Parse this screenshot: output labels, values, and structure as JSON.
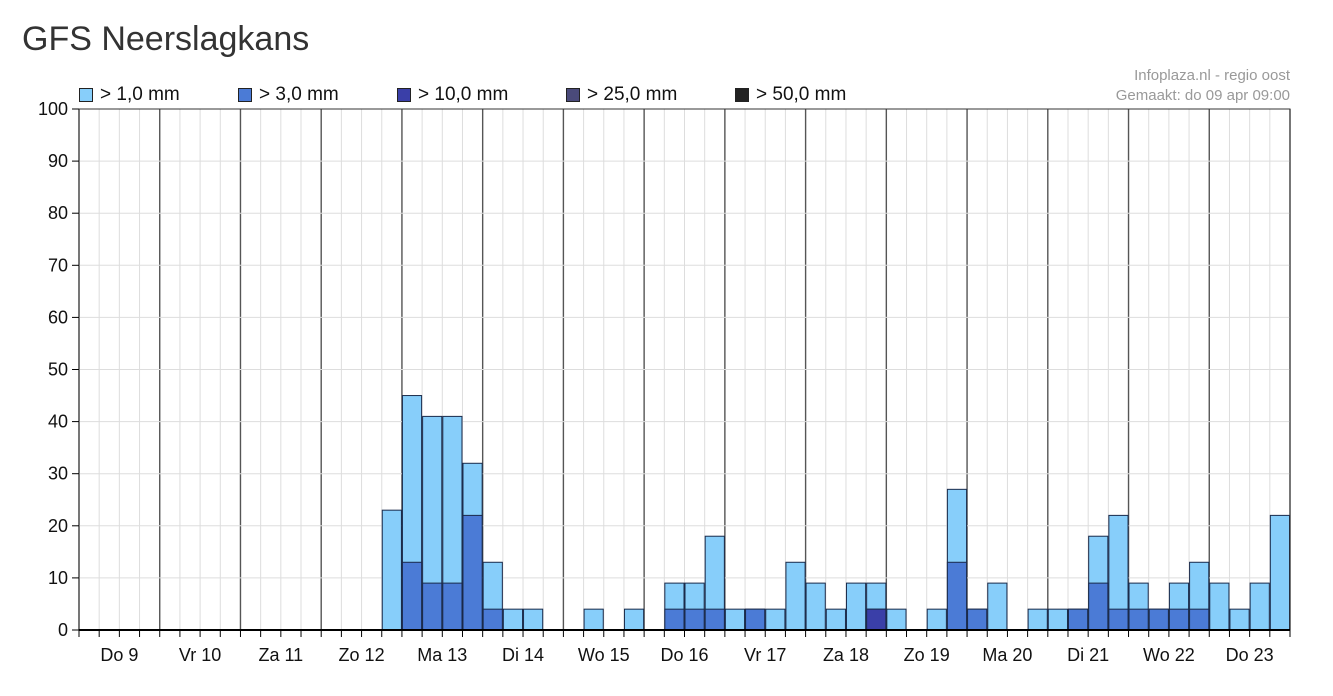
{
  "title": "GFS Neerslagkans",
  "credit": {
    "source": "Infoplaza.nl - regio oost",
    "made": "Gemaakt: do 09 apr 09:00"
  },
  "chart_data": {
    "type": "bar",
    "stacked": true,
    "grid": true,
    "legend_position": "top",
    "ylim": [
      0,
      100
    ],
    "yticks": [
      0,
      10,
      20,
      30,
      40,
      50,
      60,
      70,
      80,
      90,
      100
    ],
    "xlim": [
      0,
      60
    ],
    "day_labels": [
      "Do 9",
      "Vr 10",
      "Za 11",
      "Zo 12",
      "Ma 13",
      "Di 14",
      "Wo 15",
      "Do 16",
      "Vr 17",
      "Za 18",
      "Zo 19",
      "Ma 20",
      "Di 21",
      "Wo 22",
      "Do 23"
    ],
    "series": [
      {
        "name": "> 1,0 mm",
        "color": "#87CEFA"
      },
      {
        "name": "> 3,0 mm",
        "color": "#4B7BD6"
      },
      {
        "name": "> 10,0 mm",
        "color": "#3A3FA8"
      },
      {
        "name": "> 25,0 mm",
        "color": "#4A4A7A"
      },
      {
        "name": "> 50,0 mm",
        "color": "#222222"
      }
    ],
    "bars": [
      {
        "x": 15,
        "values": [
          23,
          0,
          0,
          0,
          0
        ]
      },
      {
        "x": 16,
        "values": [
          45,
          13,
          0,
          0,
          0
        ]
      },
      {
        "x": 17,
        "values": [
          41,
          9,
          0,
          0,
          0
        ]
      },
      {
        "x": 18,
        "values": [
          41,
          9,
          0,
          0,
          0
        ]
      },
      {
        "x": 19,
        "values": [
          32,
          22,
          0,
          0,
          0
        ]
      },
      {
        "x": 20,
        "values": [
          13,
          4,
          0,
          0,
          0
        ]
      },
      {
        "x": 21,
        "values": [
          4,
          0,
          0,
          0,
          0
        ]
      },
      {
        "x": 22,
        "values": [
          4,
          0,
          0,
          0,
          0
        ]
      },
      {
        "x": 25,
        "values": [
          4,
          0,
          0,
          0,
          0
        ]
      },
      {
        "x": 27,
        "values": [
          4,
          0,
          0,
          0,
          0
        ]
      },
      {
        "x": 29,
        "values": [
          9,
          4,
          0,
          0,
          0
        ]
      },
      {
        "x": 30,
        "values": [
          9,
          4,
          0,
          0,
          0
        ]
      },
      {
        "x": 31,
        "values": [
          18,
          4,
          0,
          0,
          0
        ]
      },
      {
        "x": 32,
        "values": [
          4,
          0,
          0,
          0,
          0
        ]
      },
      {
        "x": 33,
        "values": [
          4,
          4,
          0,
          0,
          0
        ]
      },
      {
        "x": 34,
        "values": [
          4,
          0,
          0,
          0,
          0
        ]
      },
      {
        "x": 35,
        "values": [
          13,
          0,
          0,
          0,
          0
        ]
      },
      {
        "x": 36,
        "values": [
          9,
          0,
          0,
          0,
          0
        ]
      },
      {
        "x": 37,
        "values": [
          4,
          0,
          0,
          0,
          0
        ]
      },
      {
        "x": 38,
        "values": [
          9,
          0,
          0,
          0,
          0
        ]
      },
      {
        "x": 39,
        "values": [
          9,
          4,
          4,
          0,
          0
        ]
      },
      {
        "x": 40,
        "values": [
          4,
          0,
          0,
          0,
          0
        ]
      },
      {
        "x": 42,
        "values": [
          4,
          0,
          0,
          0,
          0
        ]
      },
      {
        "x": 43,
        "values": [
          27,
          13,
          0,
          0,
          0
        ]
      },
      {
        "x": 44,
        "values": [
          4,
          4,
          0,
          0,
          0
        ]
      },
      {
        "x": 45,
        "values": [
          9,
          0,
          0,
          0,
          0
        ]
      },
      {
        "x": 47,
        "values": [
          4,
          0,
          0,
          0,
          0
        ]
      },
      {
        "x": 48,
        "values": [
          4,
          0,
          0,
          0,
          0
        ]
      },
      {
        "x": 49,
        "values": [
          4,
          4,
          0,
          0,
          0
        ]
      },
      {
        "x": 50,
        "values": [
          18,
          9,
          0,
          0,
          0
        ]
      },
      {
        "x": 51,
        "values": [
          22,
          4,
          0,
          0,
          0
        ]
      },
      {
        "x": 52,
        "values": [
          9,
          4,
          0,
          0,
          0
        ]
      },
      {
        "x": 53,
        "values": [
          4,
          4,
          0,
          0,
          0
        ]
      },
      {
        "x": 54,
        "values": [
          9,
          4,
          0,
          0,
          0
        ]
      },
      {
        "x": 55,
        "values": [
          13,
          4,
          0,
          0,
          0
        ]
      },
      {
        "x": 56,
        "values": [
          9,
          0,
          0,
          0,
          0
        ]
      },
      {
        "x": 57,
        "values": [
          4,
          0,
          0,
          0,
          0
        ]
      },
      {
        "x": 58,
        "values": [
          9,
          0,
          0,
          0,
          0
        ]
      },
      {
        "x": 59,
        "values": [
          22,
          0,
          0,
          0,
          0
        ]
      }
    ]
  }
}
